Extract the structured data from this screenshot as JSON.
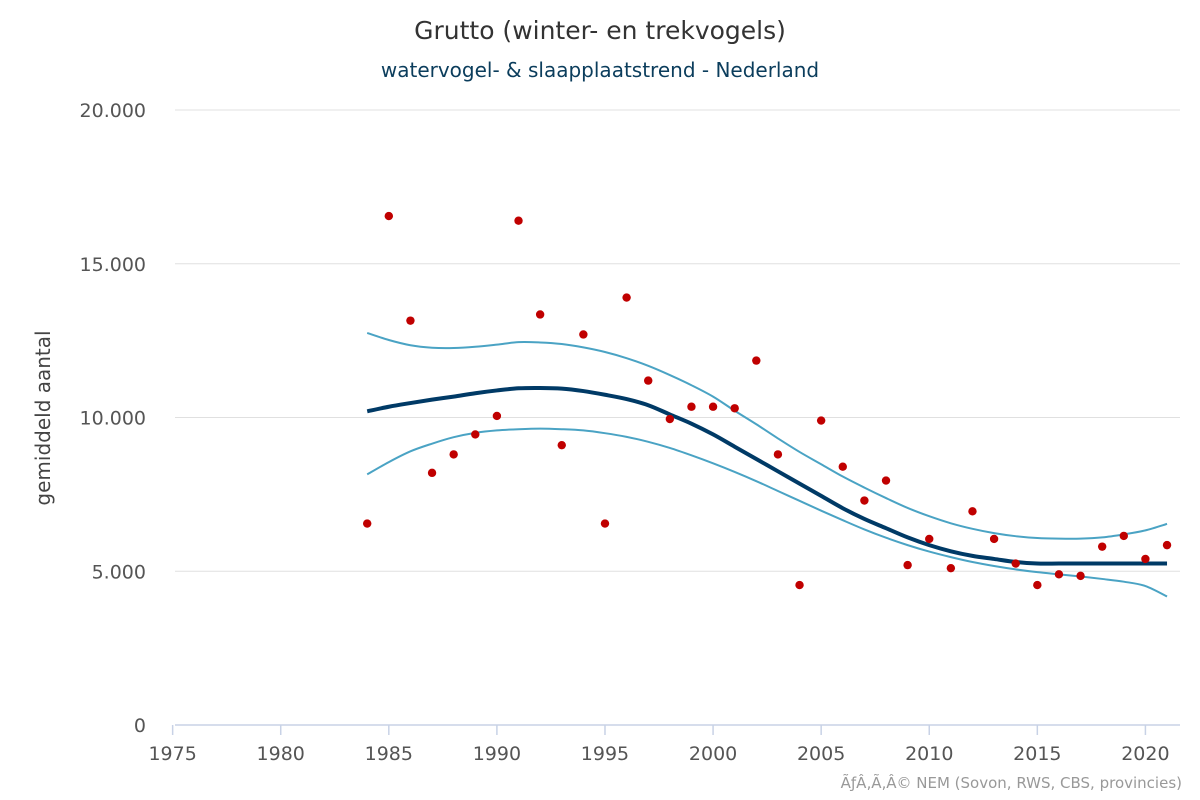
{
  "title": "Grutto (winter- en trekvogels)",
  "subtitle": "watervogel- & slaapplaatstrend - Nederland",
  "credits": "ÃƒÂ‚Ã‚Â© NEM (Sovon, RWS, CBS, provincies)",
  "colors": {
    "points": "#c00000",
    "trend": "#003a66",
    "band": "#4aa3c4",
    "grid": "#e0e0e0",
    "x_axis": "#c8d2e6"
  },
  "chart_data": {
    "type": "scatter",
    "title": "Grutto (winter- en trekvogels)",
    "subtitle": "watervogel- & slaapplaatstrend - Nederland",
    "ylabel": "gemiddeld aantal",
    "xlabel": "",
    "xlim": [
      1974.6,
      2021.6
    ],
    "ylim": [
      0,
      20000
    ],
    "x_ticks": [
      1975,
      1980,
      1985,
      1990,
      1995,
      2000,
      2005,
      2010,
      2015,
      2020
    ],
    "x_tick_labels": [
      "1975",
      "1980",
      "1985",
      "1990",
      "1995",
      "2000",
      "2005",
      "2010",
      "2015",
      "2020"
    ],
    "y_ticks": [
      0,
      5000,
      10000,
      15000,
      20000
    ],
    "y_tick_labels": [
      "0",
      "5.000",
      "10.000",
      "15.000",
      "20.000"
    ],
    "grid": true,
    "series": [
      {
        "type": "scatter",
        "x": [
          1984,
          1985,
          1986,
          1987,
          1988,
          1989,
          1990,
          1991,
          1992,
          1993,
          1994,
          1995,
          1996,
          1997,
          1998,
          1999,
          2000,
          2001,
          2002,
          2003,
          2004,
          2005,
          2006,
          2007,
          2008,
          2009,
          2010,
          2011,
          2012,
          2013,
          2014,
          2015,
          2016,
          2017,
          2018,
          2019,
          2020,
          2021
        ],
        "y": [
          6550,
          16550,
          13150,
          8200,
          8800,
          9450,
          10050,
          16400,
          13350,
          9100,
          12700,
          6550,
          13900,
          11200,
          9950,
          10350,
          10350,
          10300,
          11850,
          8800,
          4550,
          9900,
          8400,
          7300,
          7950,
          5200,
          6050,
          5100,
          6950,
          6050,
          5250,
          4550,
          4900,
          4850,
          5800,
          6150,
          5400,
          5850
        ]
      },
      {
        "type": "line",
        "x": [
          1984,
          1985,
          1986,
          1987,
          1988,
          1989,
          1990,
          1991,
          1992,
          1993,
          1994,
          1995,
          1996,
          1997,
          1998,
          1999,
          2000,
          2001,
          2002,
          2003,
          2004,
          2005,
          2006,
          2007,
          2008,
          2009,
          2010,
          2011,
          2012,
          2013,
          2014,
          2015,
          2016,
          2017,
          2018,
          2019,
          2020,
          2021
        ],
        "y": [
          10200,
          10350,
          10470,
          10580,
          10680,
          10790,
          10880,
          10950,
          10960,
          10940,
          10860,
          10740,
          10600,
          10400,
          10100,
          9800,
          9450,
          9050,
          8650,
          8250,
          7850,
          7450,
          7050,
          6700,
          6400,
          6100,
          5850,
          5650,
          5500,
          5400,
          5300,
          5250,
          5250,
          5250,
          5250,
          5250,
          5250,
          5250
        ]
      },
      {
        "type": "line",
        "x": [
          1984,
          1985,
          1986,
          1987,
          1988,
          1989,
          1990,
          1991,
          1992,
          1993,
          1994,
          1995,
          1996,
          1997,
          1998,
          1999,
          2000,
          2001,
          2002,
          2003,
          2004,
          2005,
          2006,
          2007,
          2008,
          2009,
          2010,
          2011,
          2012,
          2013,
          2014,
          2015,
          2016,
          2017,
          2018,
          2019,
          2020,
          2021
        ],
        "y": [
          12750,
          12520,
          12350,
          12270,
          12260,
          12300,
          12370,
          12450,
          12440,
          12390,
          12280,
          12130,
          11930,
          11680,
          11380,
          11050,
          10680,
          10220,
          9780,
          9320,
          8880,
          8480,
          8080,
          7720,
          7380,
          7060,
          6790,
          6560,
          6380,
          6240,
          6140,
          6080,
          6060,
          6060,
          6100,
          6200,
          6330,
          6540
        ]
      },
      {
        "type": "line",
        "x": [
          1984,
          1985,
          1986,
          1987,
          1988,
          1989,
          1990,
          1991,
          1992,
          1993,
          1994,
          1995,
          1996,
          1997,
          1998,
          1999,
          2000,
          2001,
          2002,
          2003,
          2004,
          2005,
          2006,
          2007,
          2008,
          2009,
          2010,
          2011,
          2012,
          2013,
          2014,
          2015,
          2016,
          2017,
          2018,
          2019,
          2020,
          2021
        ],
        "y": [
          8150,
          8550,
          8900,
          9150,
          9360,
          9500,
          9580,
          9620,
          9640,
          9620,
          9580,
          9490,
          9370,
          9210,
          9010,
          8770,
          8510,
          8230,
          7930,
          7610,
          7290,
          6970,
          6660,
          6360,
          6090,
          5850,
          5640,
          5460,
          5300,
          5170,
          5060,
          4970,
          4900,
          4830,
          4750,
          4660,
          4520,
          4180
        ]
      }
    ]
  }
}
